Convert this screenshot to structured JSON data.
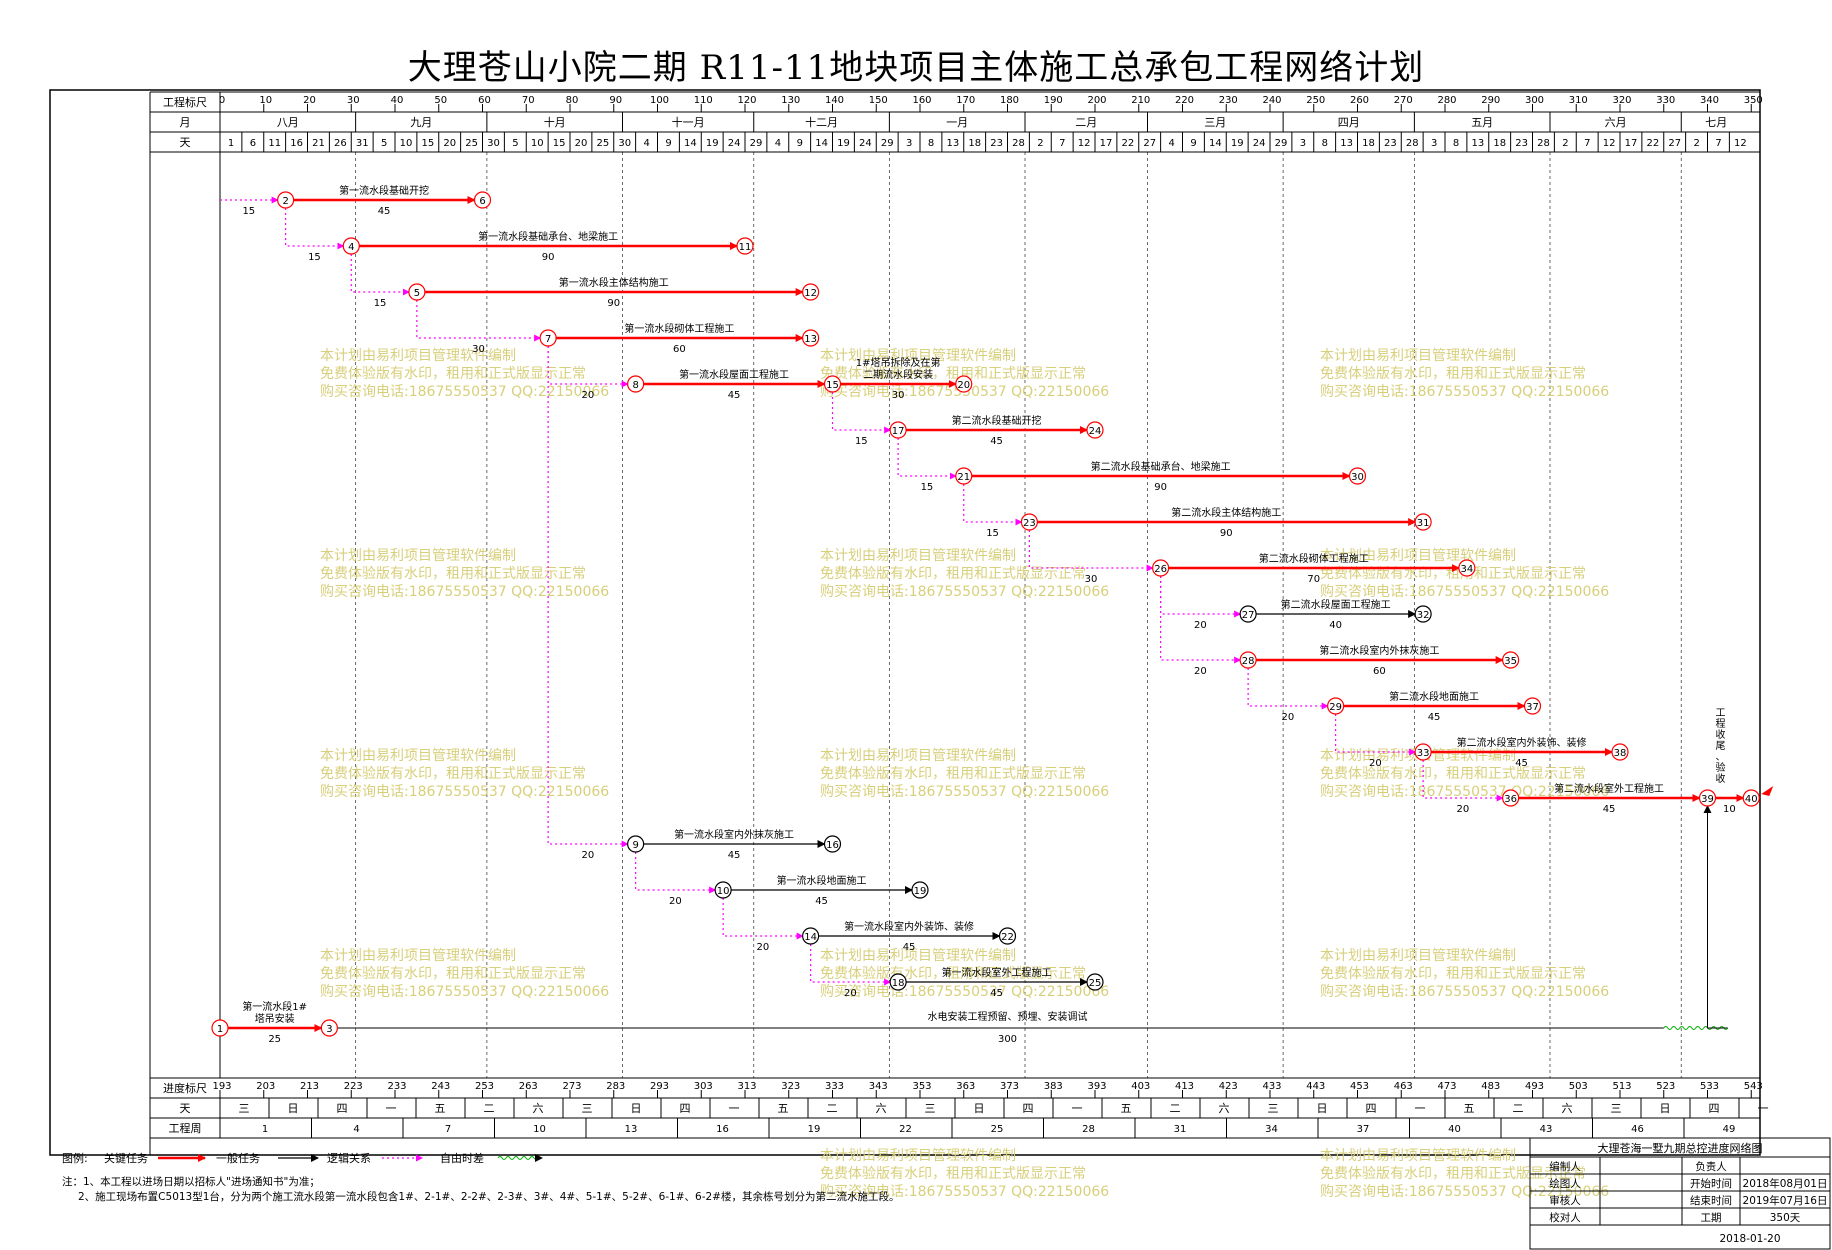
{
  "title": "大理苍山小院二期 R11-11地块项目主体施工总承包工程网络计划",
  "header": {
    "scale_label": "工程标尺",
    "month_label": "月",
    "day_label": "天",
    "scale_ticks": [
      "0",
      "10",
      "20",
      "30",
      "40",
      "50",
      "60",
      "70",
      "80",
      "90",
      "100",
      "110",
      "120",
      "130",
      "140",
      "150",
      "160",
      "170",
      "180",
      "190",
      "200",
      "210",
      "220",
      "230",
      "240",
      "250",
      "260",
      "270",
      "280",
      "290",
      "300",
      "310",
      "320",
      "330",
      "340",
      "350"
    ],
    "months": [
      "八月",
      "九月",
      "十月",
      "十一月",
      "十二月",
      "一月",
      "二月",
      "三月",
      "四月",
      "五月",
      "六月",
      "七月"
    ],
    "days": [
      "1",
      "6",
      "11",
      "16",
      "21",
      "26",
      "31",
      "5",
      "10",
      "15",
      "20",
      "25",
      "30",
      "5",
      "10",
      "15",
      "20",
      "25",
      "30",
      "4",
      "9",
      "14",
      "19",
      "24",
      "29",
      "4",
      "9",
      "14",
      "19",
      "24",
      "29",
      "3",
      "8",
      "13",
      "18",
      "23",
      "28",
      "2",
      "7",
      "12",
      "17",
      "22",
      "27",
      "4",
      "9",
      "14",
      "19",
      "24",
      "29",
      "3",
      "8",
      "13",
      "18",
      "23",
      "28",
      "3",
      "8",
      "13",
      "18",
      "23",
      "28",
      "2",
      "7",
      "12",
      "17",
      "22",
      "27",
      "2",
      "7",
      "12"
    ]
  },
  "footer": {
    "progress_label": "进度标尺",
    "progress_ticks": [
      "193",
      "203",
      "213",
      "223",
      "233",
      "243",
      "253",
      "263",
      "273",
      "283",
      "293",
      "303",
      "313",
      "323",
      "333",
      "343",
      "353",
      "363",
      "373",
      "383",
      "393",
      "403",
      "413",
      "423",
      "433",
      "443",
      "453",
      "463",
      "473",
      "483",
      "493",
      "503",
      "513",
      "523",
      "533",
      "543"
    ],
    "weekday_label": "天",
    "weekdays": [
      "三",
      "日",
      "四",
      "一",
      "五",
      "二",
      "六",
      "三",
      "日",
      "四",
      "一",
      "五",
      "二",
      "六",
      "三",
      "日",
      "四",
      "一",
      "五",
      "二",
      "六",
      "三",
      "日",
      "四",
      "一",
      "五",
      "二",
      "六",
      "三",
      "日",
      "四",
      "一"
    ],
    "week_label": "工程周",
    "weeks": [
      "1",
      "4",
      "7",
      "10",
      "13",
      "16",
      "19",
      "22",
      "25",
      "28",
      "31",
      "34",
      "37",
      "40",
      "43",
      "46",
      "49"
    ]
  },
  "nodes": [
    {
      "id": "1",
      "t": 0,
      "row": 18,
      "kind": "critical"
    },
    {
      "id": "2",
      "t": 15,
      "row": 0,
      "kind": "critical"
    },
    {
      "id": "3",
      "t": 25,
      "row": 18,
      "kind": "critical"
    },
    {
      "id": "4",
      "t": 30,
      "row": 1,
      "kind": "critical"
    },
    {
      "id": "5",
      "t": 45,
      "row": 2,
      "kind": "critical"
    },
    {
      "id": "6",
      "t": 60,
      "row": 0,
      "kind": "critical"
    },
    {
      "id": "7",
      "t": 75,
      "row": 3,
      "kind": "critical"
    },
    {
      "id": "8",
      "t": 95,
      "row": 4,
      "kind": "critical"
    },
    {
      "id": "9",
      "t": 95,
      "row": 14,
      "kind": "normal"
    },
    {
      "id": "10",
      "t": 115,
      "row": 15,
      "kind": "normal"
    },
    {
      "id": "11",
      "t": 120,
      "row": 1,
      "kind": "critical"
    },
    {
      "id": "12",
      "t": 135,
      "row": 2,
      "kind": "critical"
    },
    {
      "id": "13",
      "t": 135,
      "row": 3,
      "kind": "critical"
    },
    {
      "id": "14",
      "t": 135,
      "row": 16,
      "kind": "normal"
    },
    {
      "id": "15",
      "t": 140,
      "row": 4,
      "kind": "critical"
    },
    {
      "id": "16",
      "t": 140,
      "row": 14,
      "kind": "normal"
    },
    {
      "id": "17",
      "t": 155,
      "row": 5,
      "kind": "critical"
    },
    {
      "id": "18",
      "t": 155,
      "row": 17,
      "kind": "normal"
    },
    {
      "id": "19",
      "t": 160,
      "row": 15,
      "kind": "normal"
    },
    {
      "id": "20",
      "t": 170,
      "row": 4,
      "kind": "critical"
    },
    {
      "id": "21",
      "t": 170,
      "row": 6,
      "kind": "critical"
    },
    {
      "id": "22",
      "t": 180,
      "row": 16,
      "kind": "normal"
    },
    {
      "id": "23",
      "t": 185,
      "row": 7,
      "kind": "critical"
    },
    {
      "id": "24",
      "t": 200,
      "row": 5,
      "kind": "critical"
    },
    {
      "id": "25",
      "t": 200,
      "row": 17,
      "kind": "normal"
    },
    {
      "id": "26",
      "t": 215,
      "row": 8,
      "kind": "critical"
    },
    {
      "id": "27",
      "t": 235,
      "row": 9,
      "kind": "normal"
    },
    {
      "id": "28",
      "t": 235,
      "row": 10,
      "kind": "critical"
    },
    {
      "id": "29",
      "t": 255,
      "row": 11,
      "kind": "critical"
    },
    {
      "id": "30",
      "t": 260,
      "row": 6,
      "kind": "critical"
    },
    {
      "id": "31",
      "t": 275,
      "row": 7,
      "kind": "critical"
    },
    {
      "id": "32",
      "t": 275,
      "row": 9,
      "kind": "normal"
    },
    {
      "id": "33",
      "t": 275,
      "row": 12,
      "kind": "critical"
    },
    {
      "id": "34",
      "t": 285,
      "row": 8,
      "kind": "critical"
    },
    {
      "id": "35",
      "t": 295,
      "row": 10,
      "kind": "critical"
    },
    {
      "id": "36",
      "t": 295,
      "row": 13,
      "kind": "critical"
    },
    {
      "id": "37",
      "t": 300,
      "row": 11,
      "kind": "critical"
    },
    {
      "id": "38",
      "t": 320,
      "row": 12,
      "kind": "critical"
    },
    {
      "id": "39",
      "t": 340,
      "row": 13,
      "kind": "critical"
    },
    {
      "id": "40",
      "t": 350,
      "row": 13,
      "kind": "critical"
    }
  ],
  "activities": [
    {
      "from": "1",
      "to": "3",
      "name": "第一流水段1#\n塔吊安装",
      "dur": "25",
      "kind": "critical"
    },
    {
      "from": "2",
      "to": "6",
      "name": "第一流水段基础开挖",
      "dur": "45",
      "kind": "critical"
    },
    {
      "from": "4",
      "to": "11",
      "name": "第一流水段基础承台、地梁施工",
      "dur": "90",
      "kind": "critical"
    },
    {
      "from": "5",
      "to": "12",
      "name": "第一流水段主体结构施工",
      "dur": "90",
      "kind": "critical"
    },
    {
      "from": "7",
      "to": "13",
      "name": "第一流水段砌体工程施工",
      "dur": "60",
      "kind": "critical"
    },
    {
      "from": "8",
      "to": "15",
      "name": "第一流水段屋面工程施工",
      "dur": "45",
      "kind": "critical"
    },
    {
      "from": "15",
      "to": "20",
      "name": "1#塔吊拆除及在第\n二期流水段安装",
      "dur": "30",
      "kind": "critical"
    },
    {
      "from": "17",
      "to": "24",
      "name": "第二流水段基础开挖",
      "dur": "45",
      "kind": "critical"
    },
    {
      "from": "21",
      "to": "30",
      "name": "第二流水段基础承台、地梁施工",
      "dur": "90",
      "kind": "critical"
    },
    {
      "from": "23",
      "to": "31",
      "name": "第二流水段主体结构施工",
      "dur": "90",
      "kind": "critical"
    },
    {
      "from": "26",
      "to": "34",
      "name": "第二流水段砌体工程施工",
      "dur": "70",
      "kind": "critical"
    },
    {
      "from": "27",
      "to": "32",
      "name": "第二流水段屋面工程施工",
      "dur": "40",
      "kind": "normal"
    },
    {
      "from": "28",
      "to": "35",
      "name": "第二流水段室内外抹灰施工",
      "dur": "60",
      "kind": "critical"
    },
    {
      "from": "29",
      "to": "37",
      "name": "第二流水段地面施工",
      "dur": "45",
      "kind": "critical"
    },
    {
      "from": "33",
      "to": "38",
      "name": "第二流水段室内外装饰、装修",
      "dur": "45",
      "kind": "critical"
    },
    {
      "from": "36",
      "to": "39",
      "name": "第二流水段室外工程施工",
      "dur": "45",
      "kind": "critical"
    },
    {
      "from": "39",
      "to": "40",
      "name": "工\n程\n收\n尾\n、\n验\n收",
      "dur": "10",
      "kind": "critical"
    },
    {
      "from": "9",
      "to": "16",
      "name": "第一流水段室内外抹灰施工",
      "dur": "45",
      "kind": "normal"
    },
    {
      "from": "10",
      "to": "19",
      "name": "第一流水段地面施工",
      "dur": "45",
      "kind": "normal"
    },
    {
      "from": "14",
      "to": "22",
      "name": "第一流水段室内外装饰、装修",
      "dur": "45",
      "kind": "normal"
    },
    {
      "from": "18",
      "to": "25",
      "name": "第一流水段室外工程施工",
      "dur": "45",
      "kind": "normal"
    },
    {
      "from": "3",
      "to": "39",
      "name": "水电安装工程预留、预埋、安装调试",
      "dur": "300",
      "kind": "normal"
    }
  ],
  "lags": [
    {
      "from_t": 0,
      "from_row": 0,
      "to": "2",
      "lag": "15"
    },
    {
      "from": "2",
      "to": "4",
      "lag": "15"
    },
    {
      "from": "4",
      "to": "5",
      "lag": "15"
    },
    {
      "from": "5",
      "to": "7",
      "lag": "30"
    },
    {
      "from": "7",
      "to": "8",
      "lag": "20"
    },
    {
      "from": "7",
      "to": "9",
      "lag": "20"
    },
    {
      "from": "9",
      "to": "10",
      "lag": "20"
    },
    {
      "from": "10",
      "to": "14",
      "lag": "20"
    },
    {
      "from": "14",
      "to": "18",
      "lag": "20"
    },
    {
      "from": "15",
      "to": "17",
      "lag": "15"
    },
    {
      "from": "17",
      "to": "21",
      "lag": "15"
    },
    {
      "from": "21",
      "to": "23",
      "lag": "15"
    },
    {
      "from": "23",
      "to": "26",
      "lag": "30"
    },
    {
      "from": "26",
      "to": "27",
      "lag": "20"
    },
    {
      "from": "26",
      "to": "28",
      "lag": "20"
    },
    {
      "from": "28",
      "to": "29",
      "lag": "20"
    },
    {
      "from": "29",
      "to": "33",
      "lag": "20"
    },
    {
      "from": "33",
      "to": "36",
      "lag": "20"
    }
  ],
  "watermark": [
    "本计划由易利项目管理软件编制",
    "免费体验版有水印，租用和正式版显示正常",
    "购买咨询电话:18675550537 QQ:22150066"
  ],
  "legend": {
    "label": "图例:",
    "critical": "关键任务",
    "normal": "一般任务",
    "logic": "逻辑关系",
    "free_float": "自由时差"
  },
  "notes": [
    "注：1、本工程以进场日期以招标人\"进场通知书\"为准；",
    "2、施工现场布置C5013型1台，分为两个施工流水段第一流水段包含1#、2-1#、2-2#、2-3#、3#、4#、5-1#、5-2#、6-1#、6-2#楼，其余栋号划分为第二流水施工段。"
  ],
  "titleblock": {
    "name": "大理苍海一墅九期总控进度网络图",
    "rows": [
      {
        "label": "编制人",
        "key": "负责人",
        "val": ""
      },
      {
        "label": "绘图人",
        "key": "开始时间",
        "val": "2018年08月01日"
      },
      {
        "label": "审核人",
        "key": "结束时间",
        "val": "2019年07月16日"
      },
      {
        "label": "校对人",
        "key": "工期",
        "val": "350天"
      }
    ],
    "date": "2018-01-20"
  },
  "colors": {
    "critical": "#ff0000",
    "normal": "#000000",
    "lag": "#ff00ff",
    "watermark": "#d8cf7a",
    "float": "#00b000"
  }
}
